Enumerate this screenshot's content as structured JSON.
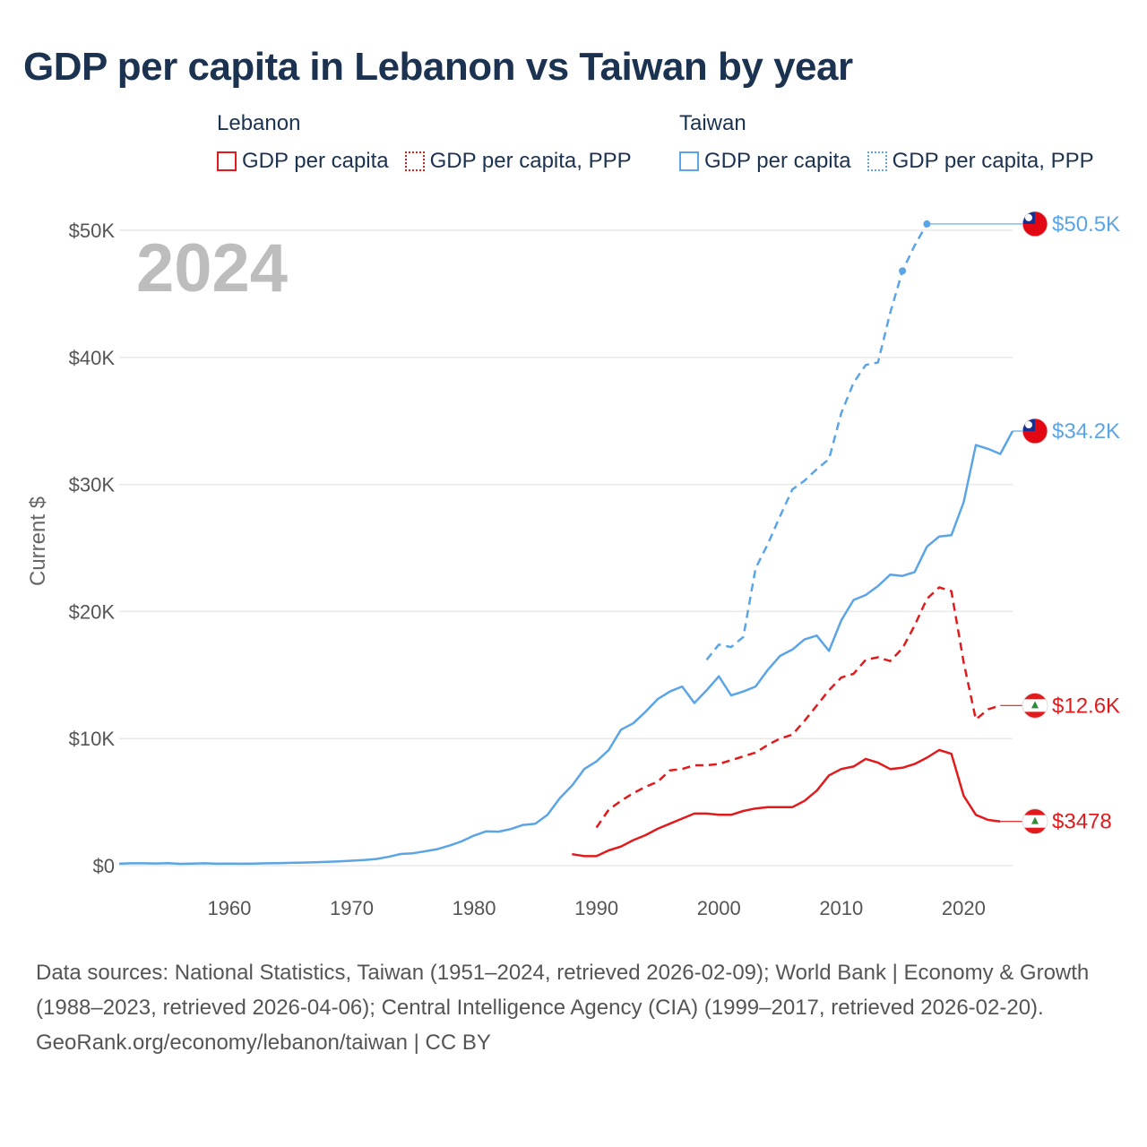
{
  "title": "GDP per capita in Lebanon vs Taiwan by year",
  "legend": {
    "lebanon": {
      "title": "Lebanon",
      "solid": "GDP per capita",
      "dotted": "GDP per capita, PPP"
    },
    "taiwan": {
      "title": "Taiwan",
      "solid": "GDP per capita",
      "dotted": "GDP per capita, PPP"
    }
  },
  "colors": {
    "lebanon": "#e31a1c",
    "taiwan": "#5ba4e5",
    "grid": "#e8e8e8",
    "text": "#1b3250"
  },
  "footer": {
    "sources": "Data sources: National Statistics, Taiwan (1951–2024, retrieved 2026-02-09); World Bank | Economy & Growth (1988–2023, retrieved 2026-04-06); Central Intelligence Agency (CIA) (1999–2017, retrieved 2026-02-20).",
    "site": "GeoRank.org/economy/lebanon/taiwan | CC BY"
  },
  "chart_data": {
    "type": "line",
    "title": "GDP per capita in Lebanon vs Taiwan by year",
    "year_label": "2024",
    "ylabel": "Current $",
    "xlabel": "",
    "xlim": [
      1951,
      2024
    ],
    "ylim": [
      0,
      52000
    ],
    "xticks": [
      1960,
      1970,
      1980,
      1990,
      2000,
      2010,
      2020
    ],
    "yticks": [
      0,
      10000,
      20000,
      30000,
      40000,
      50000
    ],
    "ytick_labels": [
      "$0",
      "$10K",
      "$20K",
      "$30K",
      "$40K",
      "$50K"
    ],
    "grid": true,
    "series": [
      {
        "name": "Taiwan GDP per capita",
        "country": "taiwan",
        "style": "solid",
        "end_label": "$34.2K",
        "data": [
          [
            1951,
            150
          ],
          [
            1952,
            180
          ],
          [
            1953,
            180
          ],
          [
            1954,
            170
          ],
          [
            1955,
            200
          ],
          [
            1956,
            140
          ],
          [
            1957,
            160
          ],
          [
            1958,
            180
          ],
          [
            1959,
            150
          ],
          [
            1960,
            160
          ],
          [
            1961,
            150
          ],
          [
            1962,
            160
          ],
          [
            1963,
            180
          ],
          [
            1964,
            200
          ],
          [
            1965,
            220
          ],
          [
            1966,
            240
          ],
          [
            1967,
            270
          ],
          [
            1968,
            300
          ],
          [
            1969,
            340
          ],
          [
            1970,
            390
          ],
          [
            1971,
            440
          ],
          [
            1972,
            520
          ],
          [
            1973,
            690
          ],
          [
            1974,
            920
          ],
          [
            1975,
            970
          ],
          [
            1976,
            1130
          ],
          [
            1977,
            1300
          ],
          [
            1978,
            1580
          ],
          [
            1979,
            1920
          ],
          [
            1980,
            2370
          ],
          [
            1981,
            2700
          ],
          [
            1982,
            2670
          ],
          [
            1983,
            2880
          ],
          [
            1984,
            3200
          ],
          [
            1985,
            3300
          ],
          [
            1986,
            4000
          ],
          [
            1987,
            5300
          ],
          [
            1988,
            6300
          ],
          [
            1989,
            7600
          ],
          [
            1990,
            8200
          ],
          [
            1991,
            9100
          ],
          [
            1992,
            10700
          ],
          [
            1993,
            11200
          ],
          [
            1994,
            12100
          ],
          [
            1995,
            13100
          ],
          [
            1996,
            13700
          ],
          [
            1997,
            14100
          ],
          [
            1998,
            12800
          ],
          [
            1999,
            13800
          ],
          [
            2000,
            14900
          ],
          [
            2001,
            13400
          ],
          [
            2002,
            13700
          ],
          [
            2003,
            14100
          ],
          [
            2004,
            15400
          ],
          [
            2005,
            16500
          ],
          [
            2006,
            17000
          ],
          [
            2007,
            17800
          ],
          [
            2008,
            18100
          ],
          [
            2009,
            16900
          ],
          [
            2010,
            19300
          ],
          [
            2011,
            20900
          ],
          [
            2012,
            21300
          ],
          [
            2013,
            22000
          ],
          [
            2014,
            22900
          ],
          [
            2015,
            22800
          ],
          [
            2016,
            23100
          ],
          [
            2017,
            25100
          ],
          [
            2018,
            25900
          ],
          [
            2019,
            26000
          ],
          [
            2020,
            28600
          ],
          [
            2021,
            33100
          ],
          [
            2022,
            32800
          ],
          [
            2023,
            32400
          ],
          [
            2024,
            34200
          ]
        ]
      },
      {
        "name": "Taiwan GDP per capita, PPP",
        "country": "taiwan",
        "style": "dashed",
        "end_label": "$50.5K",
        "data": [
          [
            1999,
            16200
          ],
          [
            2000,
            17400
          ],
          [
            2001,
            17200
          ],
          [
            2002,
            18000
          ],
          [
            2003,
            23400
          ],
          [
            2004,
            25300
          ],
          [
            2005,
            27500
          ],
          [
            2006,
            29600
          ],
          [
            2007,
            30300
          ],
          [
            2008,
            31200
          ],
          [
            2009,
            32000
          ],
          [
            2010,
            35600
          ],
          [
            2011,
            38000
          ],
          [
            2012,
            39400
          ],
          [
            2013,
            39600
          ],
          [
            2014,
            43500
          ],
          [
            2015,
            46800
          ],
          [
            2016,
            48800
          ],
          [
            2017,
            50500
          ]
        ]
      },
      {
        "name": "Lebanon GDP per capita",
        "country": "lebanon",
        "style": "solid",
        "end_label": "$3478",
        "data": [
          [
            1988,
            900
          ],
          [
            1989,
            750
          ],
          [
            1990,
            750
          ],
          [
            1991,
            1200
          ],
          [
            1992,
            1500
          ],
          [
            1993,
            2000
          ],
          [
            1994,
            2400
          ],
          [
            1995,
            2900
          ],
          [
            1996,
            3300
          ],
          [
            1997,
            3700
          ],
          [
            1998,
            4100
          ],
          [
            1999,
            4100
          ],
          [
            2000,
            4000
          ],
          [
            2001,
            4000
          ],
          [
            2002,
            4300
          ],
          [
            2003,
            4500
          ],
          [
            2004,
            4600
          ],
          [
            2005,
            4600
          ],
          [
            2006,
            4600
          ],
          [
            2007,
            5100
          ],
          [
            2008,
            5900
          ],
          [
            2009,
            7100
          ],
          [
            2010,
            7600
          ],
          [
            2011,
            7800
          ],
          [
            2012,
            8400
          ],
          [
            2013,
            8100
          ],
          [
            2014,
            7600
          ],
          [
            2015,
            7700
          ],
          [
            2016,
            8000
          ],
          [
            2017,
            8500
          ],
          [
            2018,
            9100
          ],
          [
            2019,
            8800
          ],
          [
            2020,
            5500
          ],
          [
            2021,
            4000
          ],
          [
            2022,
            3600
          ],
          [
            2023,
            3478
          ]
        ]
      },
      {
        "name": "Lebanon GDP per capita, PPP",
        "country": "lebanon",
        "style": "dashed",
        "end_label": "$12.6K",
        "data": [
          [
            1990,
            3000
          ],
          [
            1991,
            4400
          ],
          [
            1992,
            5100
          ],
          [
            1993,
            5700
          ],
          [
            1994,
            6200
          ],
          [
            1995,
            6600
          ],
          [
            1996,
            7500
          ],
          [
            1997,
            7600
          ],
          [
            1998,
            7900
          ],
          [
            1999,
            7900
          ],
          [
            2000,
            8000
          ],
          [
            2001,
            8300
          ],
          [
            2002,
            8600
          ],
          [
            2003,
            8900
          ],
          [
            2004,
            9500
          ],
          [
            2005,
            10000
          ],
          [
            2006,
            10300
          ],
          [
            2007,
            11400
          ],
          [
            2008,
            12600
          ],
          [
            2009,
            13800
          ],
          [
            2010,
            14800
          ],
          [
            2011,
            15100
          ],
          [
            2012,
            16200
          ],
          [
            2013,
            16400
          ],
          [
            2014,
            16100
          ],
          [
            2015,
            17100
          ],
          [
            2016,
            18900
          ],
          [
            2017,
            21000
          ],
          [
            2018,
            21900
          ],
          [
            2019,
            21600
          ],
          [
            2020,
            16000
          ],
          [
            2021,
            11500
          ],
          [
            2022,
            12300
          ],
          [
            2023,
            12600
          ]
        ]
      }
    ]
  }
}
